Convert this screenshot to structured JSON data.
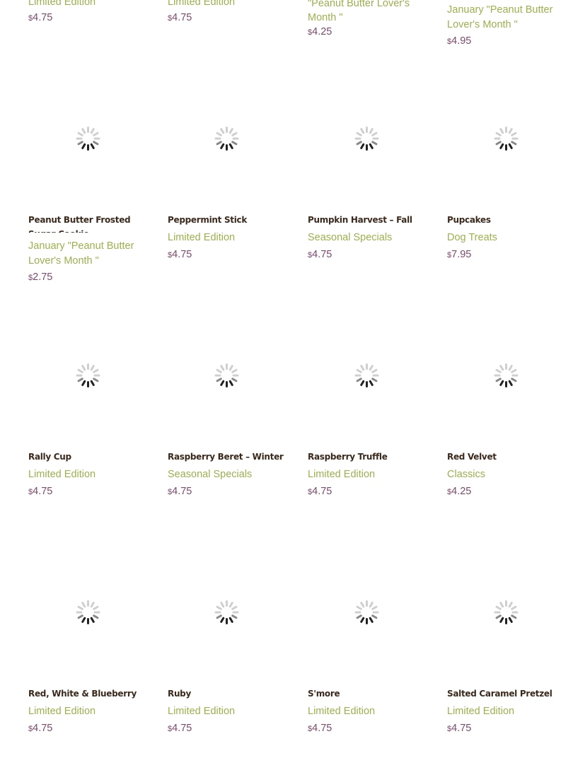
{
  "top_row": [
    {
      "category": "Limited Edition",
      "price": "4.75"
    },
    {
      "category": "Limited Edition",
      "price": "4.75"
    },
    {
      "category": "Classics, January \"Peanut Butter Lover's Month \"",
      "price": "4.25"
    },
    {
      "category": "January \"Peanut Butter Lover's Month \"",
      "price": "4.95"
    }
  ],
  "products": [
    {
      "title": "Peanut Butter Frosted Sugar Cookie",
      "category": "January \"Peanut Butter Lover's Month \"",
      "price": "2.75"
    },
    {
      "title": "Peppermint Stick",
      "category": "Limited Edition",
      "price": "4.75"
    },
    {
      "title": "Pumpkin Harvest – Fall",
      "category": "Seasonal Specials",
      "price": "4.75"
    },
    {
      "title": "Pupcakes",
      "category": "Dog Treats",
      "price": "7.95"
    },
    {
      "title": "Rally Cup",
      "category": "Limited Edition",
      "price": "4.75"
    },
    {
      "title": "Raspberry Beret – Winter",
      "category": "Seasonal Specials",
      "price": "4.75"
    },
    {
      "title": "Raspberry Truffle",
      "category": "Limited Edition",
      "price": "4.75"
    },
    {
      "title": "Red Velvet",
      "category": "Classics",
      "price": "4.25"
    },
    {
      "title": "Red, White & Blueberry",
      "category": "Limited Edition",
      "price": "4.75"
    },
    {
      "title": "Ruby",
      "category": "Limited Edition",
      "price": "4.75"
    },
    {
      "title": "S'more",
      "category": "Limited Edition",
      "price": "4.75"
    },
    {
      "title": "Salted Caramel Pretzel",
      "category": "Limited Edition",
      "price": "4.75"
    }
  ],
  "currency_symbol": "$",
  "icons": {
    "image_placeholder": "loading-spinner-icon"
  },
  "colors": {
    "title": "#3b2a1c",
    "category": "#9cb04c",
    "price": "#7b4a6c"
  }
}
